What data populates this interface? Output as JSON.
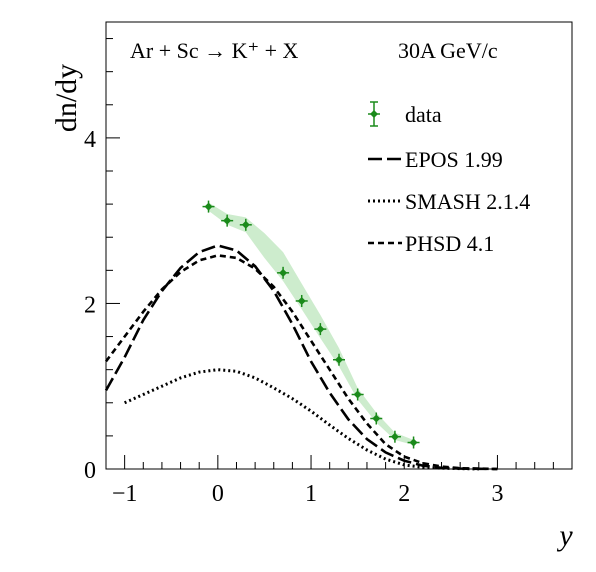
{
  "chart_data": {
    "type": "line",
    "title": "",
    "annotation": {
      "reaction": "Ar + Sc → K⁺ + X",
      "energy": "30A GeV/c"
    },
    "xlabel": "y",
    "ylabel": "dn/dy",
    "xlim": [
      -1.2,
      3.8
    ],
    "ylim": [
      0,
      5.4
    ],
    "x_ticks": [
      -1,
      0,
      1,
      2,
      3
    ],
    "x_tick_labels": [
      "−1",
      "0",
      "1",
      "2",
      "3"
    ],
    "y_ticks": [
      0,
      2,
      4
    ],
    "y_tick_labels": [
      "0",
      "2",
      "4"
    ],
    "grid": false,
    "legend": {
      "placement": "top-right",
      "entries": [
        {
          "label": "data",
          "series": "data"
        },
        {
          "label": "EPOS 1.99",
          "series": "epos"
        },
        {
          "label": "SMASH 2.1.4",
          "series": "smash"
        },
        {
          "label": "PHSD 4.1",
          "series": "phsd"
        }
      ]
    },
    "colors": {
      "data": "#1a8a1a",
      "band": "#cdeccd",
      "model": "#000000"
    },
    "data_points": {
      "x": [
        -0.1,
        0.1,
        0.3,
        0.7,
        0.9,
        1.1,
        1.3,
        1.5,
        1.7,
        1.9,
        2.1
      ],
      "y": [
        3.17,
        3.0,
        2.95,
        2.37,
        2.03,
        1.69,
        1.32,
        0.9,
        0.61,
        0.39,
        0.32
      ]
    },
    "systematic_band": {
      "x": [
        -0.1,
        0.1,
        0.3,
        0.5,
        0.7,
        0.9,
        1.1,
        1.3,
        1.5,
        1.7,
        1.9,
        2.1
      ],
      "low": [
        3.12,
        2.95,
        2.86,
        2.55,
        2.27,
        1.93,
        1.58,
        1.24,
        0.84,
        0.56,
        0.35,
        0.29
      ],
      "high": [
        3.22,
        3.08,
        3.04,
        2.85,
        2.62,
        2.24,
        1.86,
        1.46,
        0.98,
        0.68,
        0.44,
        0.35
      ]
    },
    "series": [
      {
        "id": "epos",
        "style": "long-dash",
        "x": [
          -1.2,
          -1.0,
          -0.8,
          -0.6,
          -0.4,
          -0.2,
          0.0,
          0.2,
          0.4,
          0.6,
          0.8,
          1.0,
          1.2,
          1.4,
          1.6,
          1.8,
          2.0,
          2.2,
          2.4,
          2.6,
          2.8,
          3.0
        ],
        "y": [
          0.95,
          1.35,
          1.8,
          2.15,
          2.43,
          2.62,
          2.7,
          2.64,
          2.45,
          2.15,
          1.75,
          1.3,
          0.92,
          0.6,
          0.36,
          0.2,
          0.1,
          0.04,
          0.015,
          0.005,
          0.002,
          0.0
        ]
      },
      {
        "id": "smash",
        "style": "dotted",
        "x": [
          -1.0,
          -0.8,
          -0.6,
          -0.4,
          -0.2,
          0.0,
          0.2,
          0.4,
          0.6,
          0.8,
          1.0,
          1.2,
          1.4,
          1.6,
          1.8,
          2.0,
          2.2,
          2.4,
          2.6,
          2.8
        ],
        "y": [
          0.8,
          0.9,
          1.0,
          1.1,
          1.17,
          1.2,
          1.18,
          1.1,
          0.98,
          0.85,
          0.7,
          0.53,
          0.37,
          0.23,
          0.12,
          0.05,
          0.02,
          0.01,
          0.005,
          0.0
        ]
      },
      {
        "id": "phsd",
        "style": "short-dash",
        "x": [
          -1.2,
          -1.0,
          -0.8,
          -0.6,
          -0.4,
          -0.2,
          0.0,
          0.2,
          0.4,
          0.6,
          0.8,
          1.0,
          1.2,
          1.4,
          1.6,
          1.8,
          2.0,
          2.2,
          2.4,
          2.6,
          2.8,
          3.0
        ],
        "y": [
          1.3,
          1.6,
          1.9,
          2.17,
          2.38,
          2.52,
          2.58,
          2.55,
          2.42,
          2.2,
          1.9,
          1.55,
          1.2,
          0.85,
          0.55,
          0.3,
          0.15,
          0.07,
          0.03,
          0.01,
          0.005,
          0.0
        ]
      }
    ]
  }
}
